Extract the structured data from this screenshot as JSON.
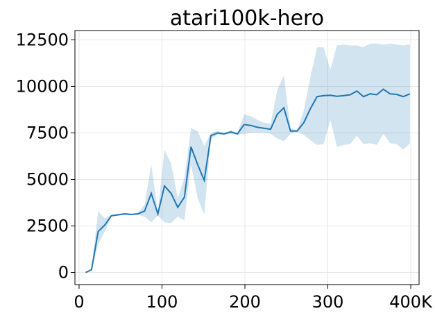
{
  "chart_data": {
    "type": "line",
    "title": "atari100k-hero",
    "xlabel": "",
    "ylabel": "",
    "xlim": [
      -5,
      410
    ],
    "ylim": [
      -650,
      13000
    ],
    "x_ticks": [
      0,
      100,
      200,
      300,
      400
    ],
    "x_tick_labels": [
      "0",
      "100",
      "200",
      "300",
      "400K"
    ],
    "y_ticks": [
      0,
      2500,
      5000,
      7500,
      10000,
      12500
    ],
    "y_tick_labels": [
      "0",
      "2500",
      "5000",
      "7500",
      "10000",
      "12500"
    ],
    "grid": true,
    "colors": {
      "line": "#1f77b4",
      "band": "#1f77b4"
    },
    "series": [
      {
        "x": [
          8,
          15,
          23,
          31,
          39,
          47,
          55,
          63,
          71,
          79,
          87,
          95,
          103,
          111,
          119,
          127,
          135,
          143,
          151,
          159,
          167,
          175,
          183,
          191,
          199,
          207,
          215,
          223,
          231,
          239,
          247,
          255,
          263,
          271,
          279,
          287,
          295,
          303,
          311,
          319,
          327,
          335,
          343,
          351,
          359,
          367,
          375,
          383,
          391,
          399
        ],
        "y": [
          0,
          150,
          2200,
          2550,
          3050,
          3100,
          3150,
          3120,
          3150,
          3300,
          4250,
          3150,
          4650,
          4250,
          3500,
          4050,
          6750,
          5800,
          4950,
          7350,
          7500,
          7450,
          7550,
          7450,
          7950,
          7900,
          7800,
          7750,
          7700,
          8500,
          8850,
          7600,
          7600,
          8050,
          8800,
          9450,
          9500,
          9520,
          9470,
          9500,
          9550,
          9750,
          9450,
          9600,
          9550,
          9850,
          9600,
          9570,
          9450,
          9600
        ],
        "lower": [
          0,
          100,
          1500,
          2200,
          3000,
          3050,
          3100,
          3080,
          3100,
          3000,
          2700,
          3050,
          2700,
          2650,
          3000,
          2800,
          5800,
          4000,
          3100,
          7200,
          7400,
          7400,
          7450,
          7400,
          7450,
          7500,
          7500,
          7500,
          7450,
          7200,
          7050,
          7450,
          7550,
          7400,
          7100,
          6850,
          6900,
          8200,
          6750,
          6850,
          6900,
          7350,
          6900,
          6950,
          6850,
          7450,
          6950,
          6900,
          6600,
          6950
        ],
        "upper": [
          0,
          200,
          3300,
          2900,
          3100,
          3150,
          3200,
          3150,
          3200,
          3650,
          5800,
          3250,
          6600,
          5850,
          4000,
          5100,
          7750,
          7600,
          6800,
          7500,
          7600,
          7500,
          7650,
          7500,
          8500,
          8400,
          8200,
          8050,
          8000,
          9800,
          10600,
          7750,
          7650,
          8700,
          10500,
          12100,
          12100,
          10900,
          12200,
          12250,
          12200,
          12200,
          12100,
          12300,
          12300,
          12250,
          12300,
          12250,
          12200,
          12250
        ]
      }
    ]
  }
}
